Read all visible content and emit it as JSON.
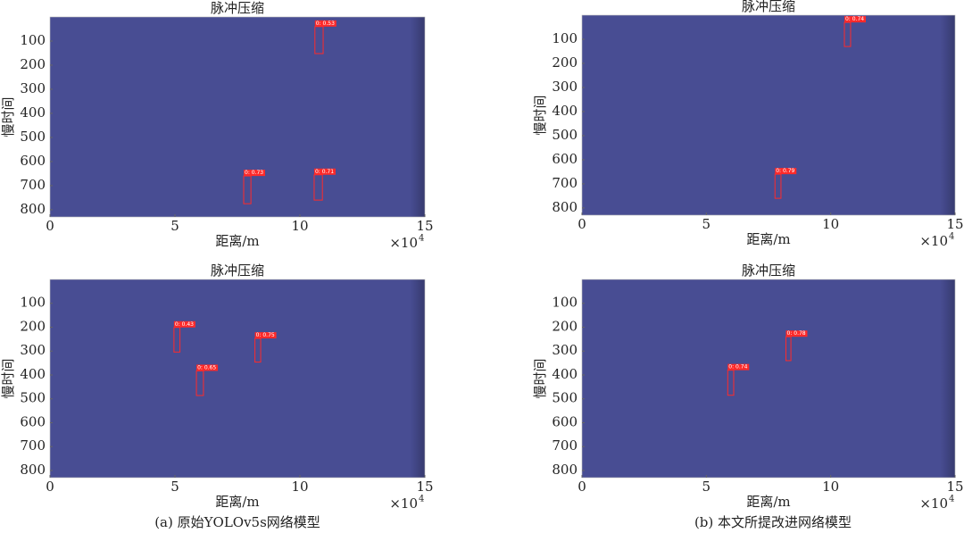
{
  "chart_data": [
    {
      "type": "image",
      "title": "脉冲压缩",
      "x_label": "距离/m",
      "y_label": "慢时间",
      "x_multiplier": "×10",
      "x_multiplier_exp": "4",
      "color": "#484d93",
      "box_color": "#ff2a2a",
      "xlim": [
        0,
        15
      ],
      "xticks": [
        0,
        5,
        10,
        15
      ],
      "ylim": [
        830,
        0
      ],
      "yticks": [
        100,
        200,
        300,
        400,
        500,
        600,
        700,
        800
      ],
      "detections": [
        {
          "label": "0: 0.53",
          "x": [
            10.6,
            10.93
          ],
          "y": [
            40,
            152
          ]
        },
        {
          "label": "0: 0.73",
          "x": [
            7.75,
            8.04
          ],
          "y": [
            660,
            775
          ]
        },
        {
          "label": "0: 0.71",
          "x": [
            10.57,
            10.9
          ],
          "y": [
            655,
            760
          ]
        }
      ]
    },
    {
      "type": "image",
      "title": "脉冲压缩",
      "x_label": "距离/m",
      "y_label": "慢时间",
      "x_multiplier": "×10",
      "x_multiplier_exp": "4",
      "color": "#484d93",
      "box_color": "#ff2a2a",
      "xlim": [
        0,
        15
      ],
      "xticks": [
        0,
        5,
        10,
        15
      ],
      "ylim": [
        830,
        0
      ],
      "yticks": [
        100,
        200,
        300,
        400,
        500,
        600,
        700,
        800
      ],
      "detections": [
        {
          "label": "0: 0.74",
          "x": [
            10.55,
            10.8
          ],
          "y": [
            30,
            130
          ]
        },
        {
          "label": "0: 0.79",
          "x": [
            7.76,
            8.0
          ],
          "y": [
            660,
            760
          ]
        }
      ]
    },
    {
      "type": "image",
      "title": "脉冲压缩",
      "x_label": "距离/m",
      "y_label": "慢时间",
      "x_multiplier": "×10",
      "x_multiplier_exp": "4",
      "color": "#484d93",
      "box_color": "#ff2a2a",
      "xlim": [
        0,
        15
      ],
      "xticks": [
        0,
        5,
        10,
        15
      ],
      "ylim": [
        830,
        0
      ],
      "yticks": [
        100,
        200,
        300,
        400,
        500,
        600,
        700,
        800
      ],
      "detections": [
        {
          "label": "0: 0.43",
          "x": [
            4.96,
            5.2
          ],
          "y": [
            201,
            304
          ]
        },
        {
          "label": "0: 0.65",
          "x": [
            5.86,
            6.14
          ],
          "y": [
            383,
            486
          ]
        },
        {
          "label": "0: 0.75",
          "x": [
            8.2,
            8.43
          ],
          "y": [
            247,
            346
          ]
        }
      ]
    },
    {
      "type": "image",
      "title": "脉冲压缩",
      "x_label": "距离/m",
      "y_label": "慢时间",
      "x_multiplier": "×10",
      "x_multiplier_exp": "4",
      "color": "#484d93",
      "box_color": "#ff2a2a",
      "xlim": [
        0,
        15
      ],
      "xticks": [
        0,
        5,
        10,
        15
      ],
      "ylim": [
        830,
        0
      ],
      "yticks": [
        100,
        200,
        300,
        400,
        500,
        600,
        700,
        800
      ],
      "detections": [
        {
          "label": "0: 0.78",
          "x": [
            8.2,
            8.4
          ],
          "y": [
            240,
            340
          ]
        },
        {
          "label": "0: 0.74",
          "x": [
            5.86,
            6.1
          ],
          "y": [
            380,
            485
          ]
        }
      ]
    }
  ],
  "captions": [
    "(a) 原始YOLOv5s网络模型",
    "(b) 本文所提改进网络模型"
  ]
}
